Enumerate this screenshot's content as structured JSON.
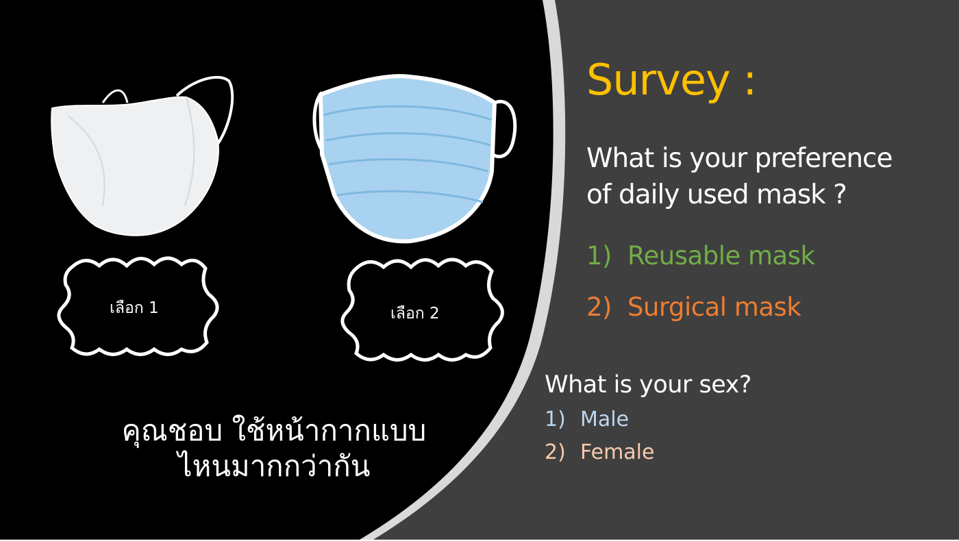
{
  "colors": {
    "panel_background": "#3f3f3f",
    "left_background": "#000000",
    "divider": "#d9d9d9",
    "title": "#ffc000",
    "option_reusable": "#70ad47",
    "option_surgical": "#ed7d31",
    "option_male": "#bdd7ee",
    "option_female": "#f8cbad"
  },
  "left": {
    "masks": [
      {
        "icon": "reusable-mask-icon",
        "choice_label": "เลือก 1"
      },
      {
        "icon": "surgical-mask-icon",
        "choice_label": "เลือก 2"
      }
    ],
    "thai_question_line1": "คุณชอบ ใช้หน้ากากแบบ",
    "thai_question_line2": "ไหนมากกว่ากัน"
  },
  "right": {
    "title": "Survey :",
    "question_line1": "What is your preference",
    "question_line2": "of daily used mask ?",
    "options": [
      {
        "number": "1)",
        "label": "Reusable mask"
      },
      {
        "number": "2)",
        "label": "Surgical mask"
      }
    ],
    "sex_question": "What is your sex?",
    "sex_options": [
      {
        "number": "1)",
        "label": "Male"
      },
      {
        "number": "2)",
        "label": "Female"
      }
    ]
  }
}
